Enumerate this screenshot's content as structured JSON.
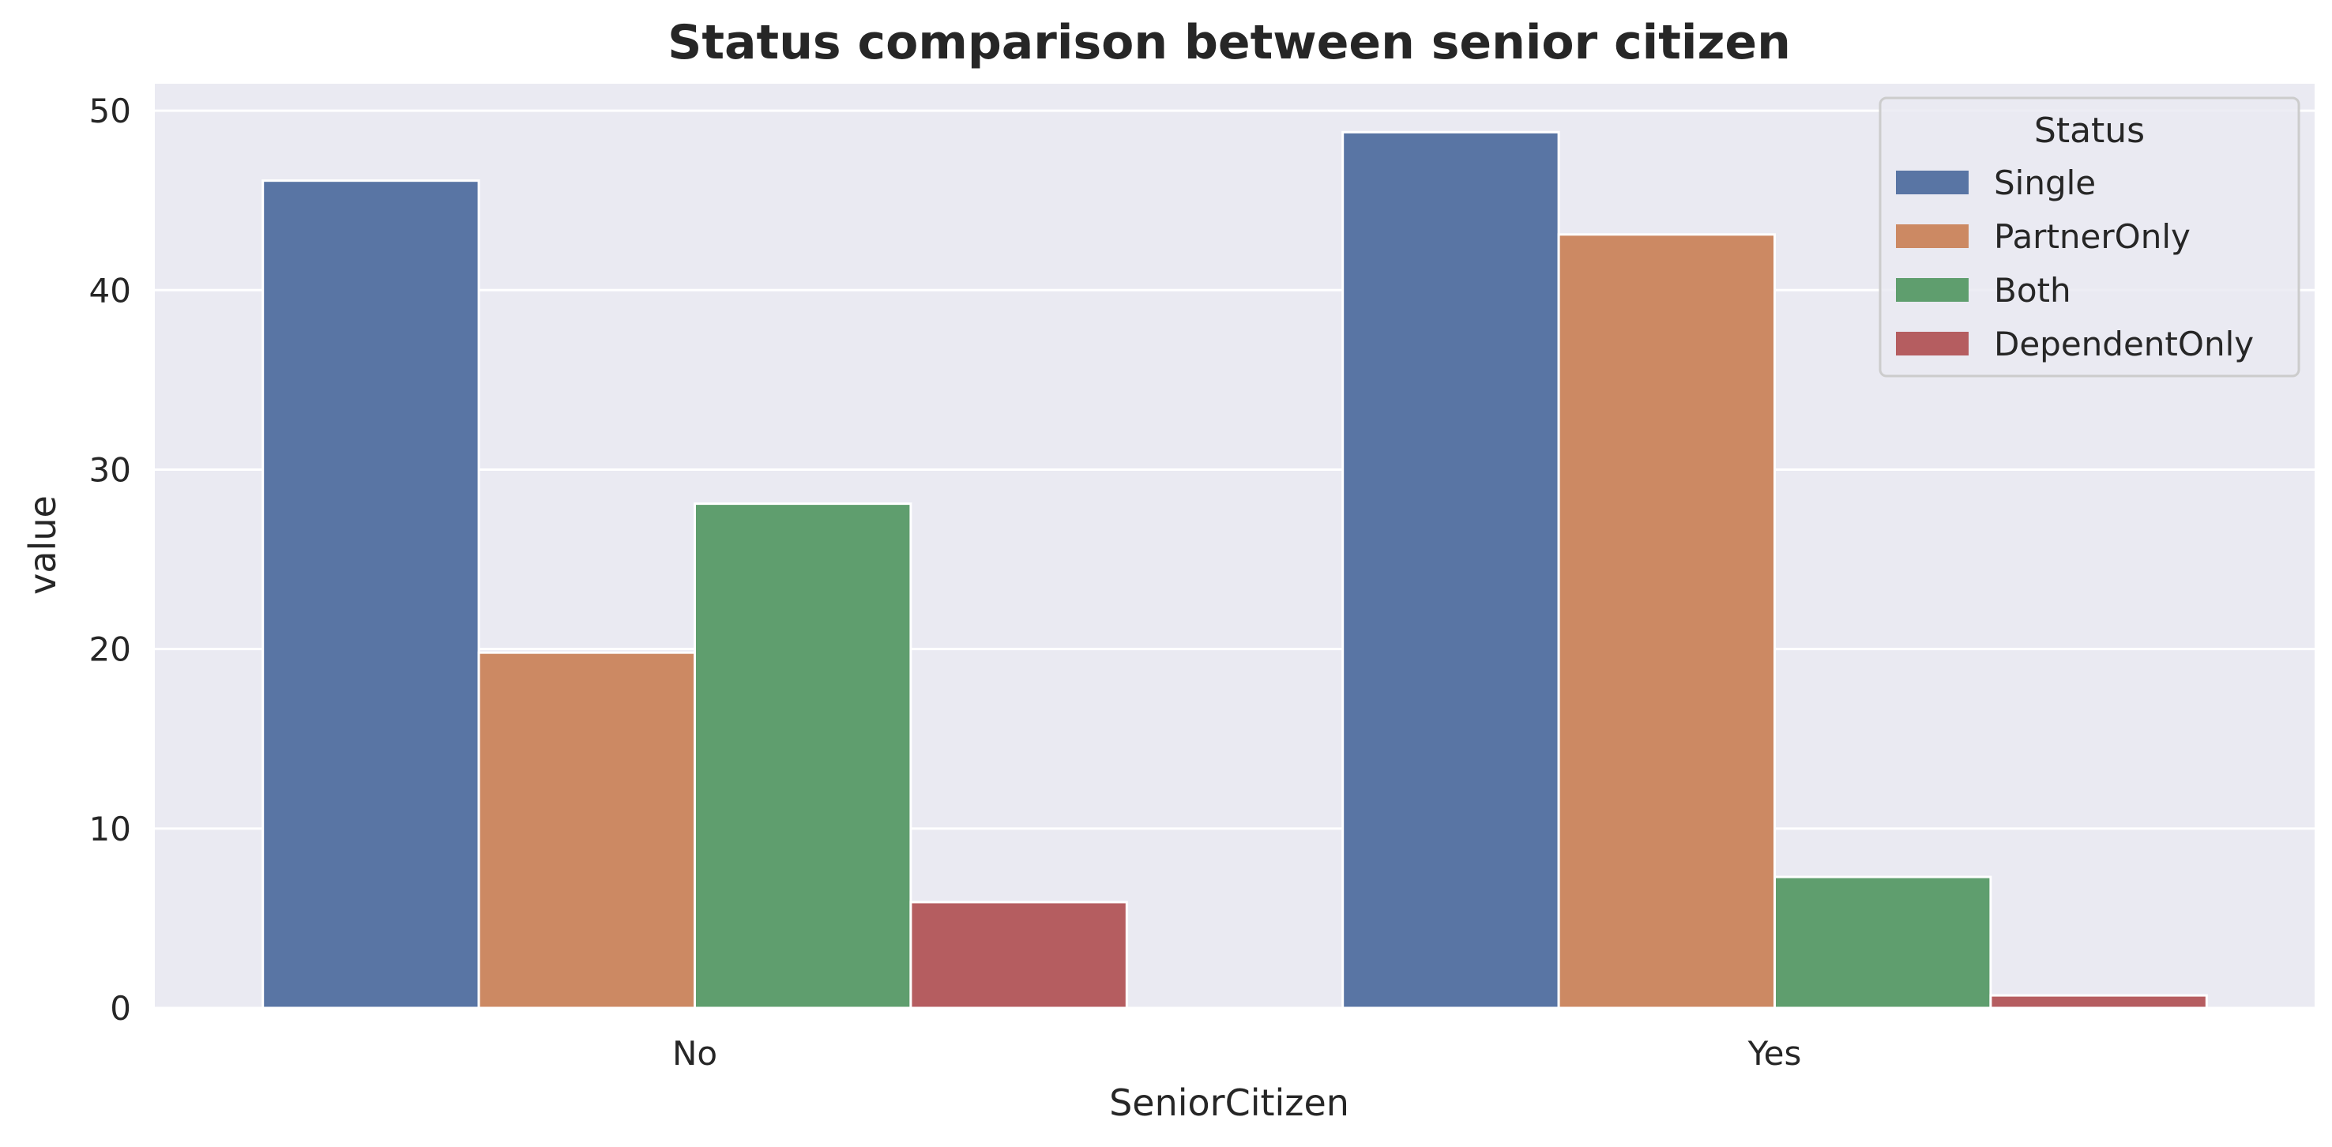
{
  "chart_data": {
    "type": "bar",
    "title": "Status comparison between senior citizen",
    "xlabel": "SeniorCitizen",
    "ylabel": "value",
    "categories": [
      "No",
      "Yes"
    ],
    "ylim": [
      0,
      51.5
    ],
    "yticks": [
      0,
      10,
      20,
      30,
      40,
      50
    ],
    "grid": true,
    "legend": {
      "title": "Status",
      "placement": "top-right"
    },
    "series": [
      {
        "name": "Single",
        "color": "#5975a4",
        "values": [
          46.1,
          48.8
        ]
      },
      {
        "name": "PartnerOnly",
        "color": "#cc8963",
        "values": [
          19.8,
          43.1
        ]
      },
      {
        "name": "Both",
        "color": "#5f9e6e",
        "values": [
          28.1,
          7.3
        ]
      },
      {
        "name": "DependentOnly",
        "color": "#b55d60",
        "values": [
          5.9,
          0.7
        ]
      }
    ],
    "background": "#eaeaf2"
  }
}
